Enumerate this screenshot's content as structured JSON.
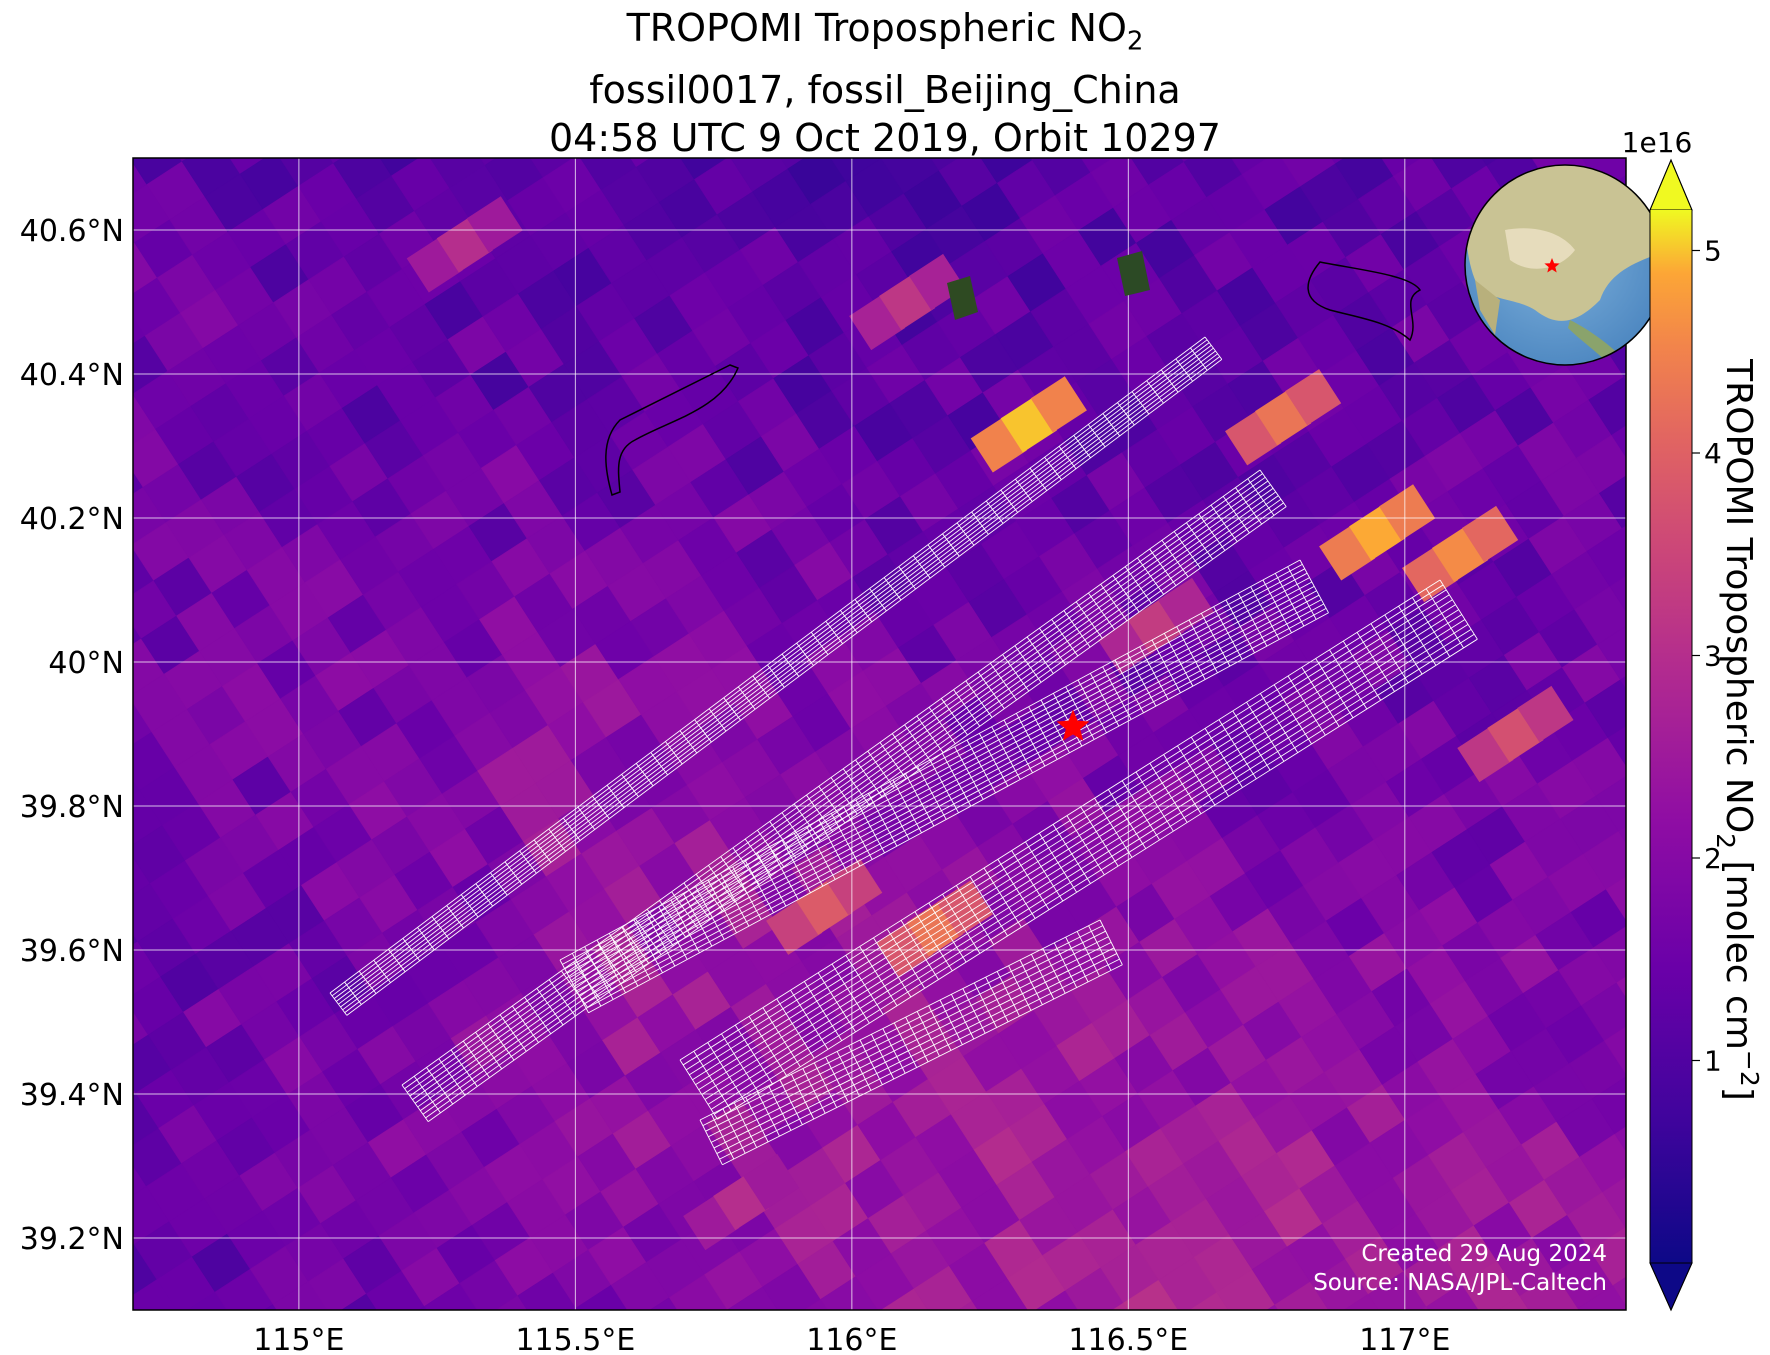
{
  "title": {
    "line1": "TROPOMI Tropospheric NO",
    "line1_sub": "2",
    "line2": "fossil0017, fossil_Beijing_China",
    "line3": "04:58 UTC 9 Oct 2019, Orbit 10297"
  },
  "credit": {
    "created": "Created 29 Aug 2024",
    "source": "Source: NASA/JPL-Caltech"
  },
  "chart_data": {
    "type": "heatmap",
    "title": "TROPOMI Tropospheric NO2 — fossil0017, fossil_Beijing_China — 04:58 UTC 9 Oct 2019, Orbit 10297",
    "xlim": [
      114.7,
      117.4
    ],
    "ylim": [
      39.1,
      40.7
    ],
    "x_ticks": [
      115.0,
      115.5,
      116.0,
      116.5,
      117.0
    ],
    "x_tick_labels": [
      "115°E",
      "115.5°E",
      "116°E",
      "116.5°E",
      "117°E"
    ],
    "y_ticks": [
      39.2,
      39.4,
      39.6,
      39.8,
      40.0,
      40.2,
      40.4,
      40.6
    ],
    "y_tick_labels": [
      "39.2°N",
      "39.4°N",
      "39.6°N",
      "39.8°N",
      "40°N",
      "40.2°N",
      "40.4°N",
      "40.6°N"
    ],
    "grid": true,
    "target": {
      "lon": 116.4,
      "lat": 39.91,
      "marker": "red-star"
    },
    "colorbar": {
      "label": "TROPOMI Tropospheric NO",
      "label_sub": "2",
      "label_unit": " [molec cm",
      "label_sup": "−2",
      "label_end": "]",
      "multiplier": "1e16",
      "min": 0,
      "max": 5.2,
      "ticks": [
        1,
        2,
        3,
        4,
        5
      ],
      "tick_labels": [
        "1",
        "2",
        "3",
        "4",
        "5"
      ],
      "extend": "both",
      "colormap": "plasma"
    },
    "hotspots": [
      {
        "lon": 116.32,
        "lat": 40.33,
        "value": 5.0
      },
      {
        "lon": 116.95,
        "lat": 40.18,
        "value": 4.9
      },
      {
        "lon": 116.78,
        "lat": 40.34,
        "value": 4.3
      },
      {
        "lon": 117.1,
        "lat": 40.15,
        "value": 4.6
      },
      {
        "lon": 117.2,
        "lat": 39.9,
        "value": 3.7
      },
      {
        "lon": 116.15,
        "lat": 39.63,
        "value": 4.3
      },
      {
        "lon": 115.95,
        "lat": 39.66,
        "value": 3.9
      },
      {
        "lon": 115.8,
        "lat": 39.25,
        "value": 3.0
      },
      {
        "lon": 116.55,
        "lat": 40.05,
        "value": 3.3
      },
      {
        "lon": 115.3,
        "lat": 40.58,
        "value": 3.0
      },
      {
        "lon": 116.1,
        "lat": 40.5,
        "value": 3.2
      }
    ],
    "swath_grids": 5,
    "inset": {
      "type": "globe",
      "marker": "red-star"
    }
  }
}
